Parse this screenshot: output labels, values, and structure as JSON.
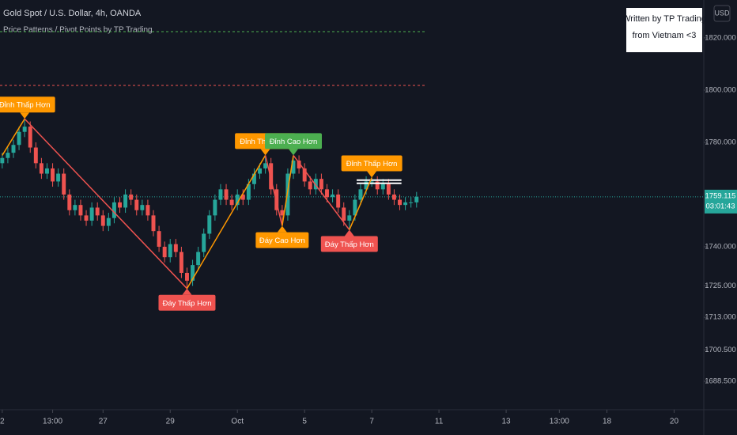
{
  "chart_data": {
    "type": "candlestick",
    "title": "Gold Spot / U.S. Dollar, 4h, OANDA",
    "subtitle": "Price Patterns / Pivot Points by TP Trading",
    "note": [
      "Written by TP Trading",
      "from Vietnam <3"
    ],
    "currency": "USD",
    "countdown": "03:01:43",
    "up_color": "#26a69a",
    "down_color": "#ef5350",
    "x": [
      0,
      1,
      2,
      3,
      4,
      5,
      6,
      7,
      8,
      9,
      10,
      11,
      12,
      13,
      14,
      15,
      16,
      17,
      18,
      19,
      20,
      21,
      22,
      23,
      24,
      25,
      26,
      27,
      28,
      29,
      30,
      31,
      32,
      33,
      34,
      35,
      36,
      37,
      38,
      39,
      40,
      41,
      42,
      43,
      44,
      45,
      46,
      47,
      48,
      49,
      50,
      51,
      52,
      53,
      54,
      55,
      56,
      57,
      58,
      59,
      60,
      61,
      62,
      63,
      64,
      65,
      66,
      67,
      68,
      69,
      70,
      71,
      72,
      73,
      74
    ],
    "open": [
      1772,
      1774,
      1776,
      1779,
      1784,
      1786,
      1778,
      1772,
      1768,
      1770,
      1765,
      1768,
      1760,
      1754,
      1756,
      1752,
      1750,
      1755,
      1752,
      1748,
      1751,
      1757,
      1755,
      1760,
      1758,
      1754,
      1756,
      1752,
      1746,
      1740,
      1736,
      1741,
      1738,
      1730,
      1727,
      1733,
      1738,
      1745,
      1752,
      1758,
      1762,
      1758,
      1756,
      1760,
      1758,
      1764,
      1768,
      1770,
      1772,
      1762,
      1754,
      1752,
      1768,
      1773,
      1770,
      1765,
      1762,
      1766,
      1762,
      1759,
      1760,
      1755,
      1750,
      1752,
      1758,
      1762,
      1765,
      1765,
      1762,
      1764,
      1760,
      1758,
      1756,
      1757,
      1757
    ],
    "high": [
      1776,
      1778,
      1781,
      1786,
      1789,
      1788,
      1780,
      1774,
      1772,
      1772,
      1770,
      1770,
      1762,
      1758,
      1758,
      1754,
      1757,
      1757,
      1754,
      1753,
      1759,
      1759,
      1762,
      1762,
      1760,
      1758,
      1758,
      1754,
      1748,
      1742,
      1743,
      1743,
      1740,
      1732,
      1735,
      1740,
      1747,
      1754,
      1760,
      1764,
      1764,
      1760,
      1762,
      1762,
      1766,
      1770,
      1772,
      1775,
      1774,
      1764,
      1756,
      1770,
      1775,
      1775,
      1772,
      1767,
      1768,
      1768,
      1764,
      1762,
      1762,
      1757,
      1754,
      1760,
      1764,
      1767,
      1766.5,
      1767,
      1766,
      1766,
      1762,
      1760,
      1759,
      1759,
      1761
    ],
    "low": [
      1770,
      1772,
      1774,
      1777,
      1782,
      1776,
      1770,
      1766,
      1766,
      1763,
      1763,
      1758,
      1752,
      1752,
      1750,
      1748,
      1748,
      1750,
      1746,
      1746,
      1749,
      1753,
      1753,
      1756,
      1752,
      1752,
      1750,
      1744,
      1738,
      1734,
      1734,
      1736,
      1728,
      1724,
      1725,
      1731,
      1736,
      1743,
      1750,
      1756,
      1756,
      1754,
      1754,
      1756,
      1756,
      1762,
      1766,
      1768,
      1760,
      1752,
      1748,
      1750,
      1766,
      1768,
      1763,
      1760,
      1760,
      1760,
      1757,
      1757,
      1753,
      1748,
      1746.5,
      1750,
      1756,
      1760,
      1763,
      1760,
      1760,
      1758,
      1756,
      1754,
      1754,
      1755,
      1755
    ],
    "close": [
      1774,
      1776,
      1779,
      1784,
      1786,
      1778,
      1772,
      1768,
      1770,
      1765,
      1768,
      1760,
      1754,
      1756,
      1752,
      1750,
      1755,
      1752,
      1748,
      1751,
      1757,
      1755,
      1760,
      1758,
      1754,
      1756,
      1752,
      1746,
      1740,
      1736,
      1741,
      1738,
      1730,
      1727,
      1733,
      1738,
      1745,
      1752,
      1758,
      1762,
      1758,
      1756,
      1760,
      1758,
      1764,
      1768,
      1770,
      1772,
      1762,
      1754,
      1752,
      1768,
      1773,
      1770,
      1765,
      1762,
      1766,
      1762,
      1759,
      1760,
      1755,
      1750,
      1752,
      1758,
      1762,
      1765,
      1765,
      1762,
      1764,
      1760,
      1758,
      1756,
      1757,
      1757,
      1759.115
    ],
    "zigzag_up_color": "#ff9800",
    "zigzag_down_color": "#ef5350",
    "pivots": [
      {
        "x": 0,
        "y": 1775
      },
      {
        "x": 4,
        "y": 1789,
        "label": "Đỉnh Thấp Hơn",
        "color": "#ff9800",
        "placement": "above"
      },
      {
        "x": 33,
        "y": 1724,
        "label": "Đáy Thấp Hơn",
        "color": "#ef5350",
        "placement": "below"
      },
      {
        "x": 47,
        "y": 1775,
        "label": "Đỉnh Thấp Hơn",
        "color": "#ff9800",
        "placement": "above"
      },
      {
        "x": 50,
        "y": 1748,
        "label": "Đáy Cao Hơn",
        "color": "#ff9800",
        "placement": "below"
      },
      {
        "x": 52,
        "y": 1775,
        "label": "Đỉnh Cao Hơn",
        "color": "#4caf50",
        "placement": "above"
      },
      {
        "x": 62,
        "y": 1746.5,
        "label": "Đáy Thấp Hơn",
        "color": "#ef5350",
        "placement": "below"
      },
      {
        "x": 66,
        "y": 1766.5,
        "label": "Đỉnh Thấp Hơn",
        "color": "#ff9800",
        "placement": "above"
      }
    ],
    "hlines": [
      {
        "y": 1822.4,
        "x_end": 75.8,
        "color": "#4caf50"
      },
      {
        "y": 1801.8,
        "x_end": 75.8,
        "color": "#ef5350"
      }
    ],
    "box": {
      "x": [
        63.3,
        71.3
      ],
      "y": [
        1765.5,
        1764.3
      ],
      "color": "#ffffff"
    },
    "xlim": [
      -0.4,
      125.3
    ],
    "ylim": [
      1677.6,
      1834.5
    ],
    "yticks": [
      {
        "value": 1820,
        "label": "1820.000"
      },
      {
        "value": 1800,
        "label": "1800.000"
      },
      {
        "value": 1780,
        "label": "1780.000"
      },
      {
        "value": 1740,
        "label": "1740.000"
      },
      {
        "value": 1725,
        "label": "1725.000"
      },
      {
        "value": 1713,
        "label": "1713.000"
      },
      {
        "value": 1700.5,
        "label": "1700.500"
      },
      {
        "value": 1688.5,
        "label": "1688.500"
      }
    ],
    "xticks": [
      {
        "value": 0,
        "label": "2"
      },
      {
        "value": 9,
        "label": "13:00"
      },
      {
        "value": 18,
        "label": "27"
      },
      {
        "value": 30,
        "label": "29"
      },
      {
        "value": 42,
        "label": "Oct"
      },
      {
        "value": 54,
        "label": "5"
      },
      {
        "value": 66,
        "label": "7"
      },
      {
        "value": 78,
        "label": "11"
      },
      {
        "value": 90,
        "label": "13"
      },
      {
        "value": 99.5,
        "label": "13:00"
      },
      {
        "value": 108,
        "label": "18"
      },
      {
        "value": 120,
        "label": "20"
      }
    ]
  }
}
